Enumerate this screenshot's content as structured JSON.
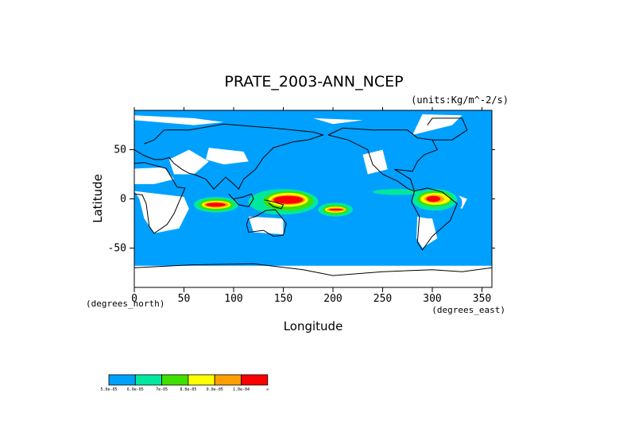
{
  "chart_data": {
    "type": "heatmap",
    "title": "PRATE_2003-ANN_NCEP",
    "units_label": "(units:Kg/m^-2/s)",
    "xlabel": "Longitude",
    "ylabel": "Latitude",
    "x_axis_note": "(degrees_east)",
    "y_axis_note": "(degrees_north)",
    "xlim": [
      0,
      360
    ],
    "ylim": [
      -90,
      90
    ],
    "x_ticks": [
      "0",
      "50",
      "100",
      "150",
      "200",
      "250",
      "300",
      "350"
    ],
    "x_tick_values": [
      0,
      50,
      100,
      150,
      200,
      250,
      300,
      350
    ],
    "y_ticks": [
      "50",
      "0",
      "-50"
    ],
    "y_tick_values": [
      50,
      0,
      -50
    ],
    "grid": false,
    "colorbar": {
      "colors": [
        "#00a0ff",
        "#00e8a0",
        "#40e000",
        "#ffff00",
        "#ffa000",
        "#ff0000"
      ],
      "labels": [
        "5.0e-05",
        "6.0e-05",
        "7e-05",
        "8.0e-05",
        "9.0e-05",
        "1.0e-04",
        "∞"
      ],
      "placement": "bottom-left"
    },
    "background_color": "#00a0ff",
    "below_min_color": "#ffffff",
    "regions": [
      {
        "level": 1,
        "lon": [
          55,
          110
        ],
        "lat": [
          -16,
          6
        ]
      },
      {
        "level": 1,
        "lon": [
          110,
          230
        ],
        "lat": [
          -20,
          14
        ]
      },
      {
        "level": 1,
        "lon": [
          230,
          290
        ],
        "lat": [
          2,
          12
        ]
      },
      {
        "level": 1,
        "lon": [
          270,
          330
        ],
        "lat": [
          -20,
          12
        ]
      },
      {
        "level": 1,
        "lon": [
          120,
          150
        ],
        "lat": [
          22,
          38
        ]
      },
      {
        "level": 2,
        "lon": [
          60,
          105
        ],
        "lat": [
          -14,
          2
        ]
      },
      {
        "level": 2,
        "lon": [
          115,
          185
        ],
        "lat": [
          -16,
          10
        ]
      },
      {
        "level": 2,
        "lon": [
          185,
          220
        ],
        "lat": [
          -18,
          -4
        ]
      },
      {
        "level": 2,
        "lon": [
          240,
          290
        ],
        "lat": [
          4,
          10
        ]
      },
      {
        "level": 2,
        "lon": [
          280,
          325
        ],
        "lat": [
          -12,
          10
        ]
      },
      {
        "level": 3,
        "lon": [
          65,
          100
        ],
        "lat": [
          -12,
          0
        ]
      },
      {
        "level": 3,
        "lon": [
          130,
          180
        ],
        "lat": [
          -12,
          8
        ]
      },
      {
        "level": 3,
        "lon": [
          190,
          215
        ],
        "lat": [
          -16,
          -6
        ]
      },
      {
        "level": 3,
        "lon": [
          285,
          320
        ],
        "lat": [
          -8,
          8
        ]
      },
      {
        "level": 4,
        "lon": [
          68,
          97
        ],
        "lat": [
          -10,
          -2
        ]
      },
      {
        "level": 4,
        "lon": [
          135,
          175
        ],
        "lat": [
          -8,
          6
        ]
      },
      {
        "level": 4,
        "lon": [
          192,
          213
        ],
        "lat": [
          -14,
          -8
        ]
      },
      {
        "level": 4,
        "lon": [
          288,
          318
        ],
        "lat": [
          -6,
          6
        ]
      },
      {
        "level": 5,
        "lon": [
          70,
          95
        ],
        "lat": [
          -9,
          -3
        ]
      },
      {
        "level": 5,
        "lon": [
          138,
          172
        ],
        "lat": [
          -6,
          4
        ]
      },
      {
        "level": 5,
        "lon": [
          194,
          212
        ],
        "lat": [
          -13,
          -9
        ]
      },
      {
        "level": 5,
        "lon": [
          292,
          312
        ],
        "lat": [
          -4,
          4
        ]
      },
      {
        "level": 6,
        "lon": [
          72,
          92
        ],
        "lat": [
          -8,
          -4
        ]
      },
      {
        "level": 6,
        "lon": [
          140,
          170
        ],
        "lat": [
          -5,
          3
        ]
      },
      {
        "level": 6,
        "lon": [
          196,
          210
        ],
        "lat": [
          -12,
          -10
        ]
      },
      {
        "level": 6,
        "lon": [
          294,
          308
        ],
        "lat": [
          -3,
          3
        ]
      }
    ]
  }
}
